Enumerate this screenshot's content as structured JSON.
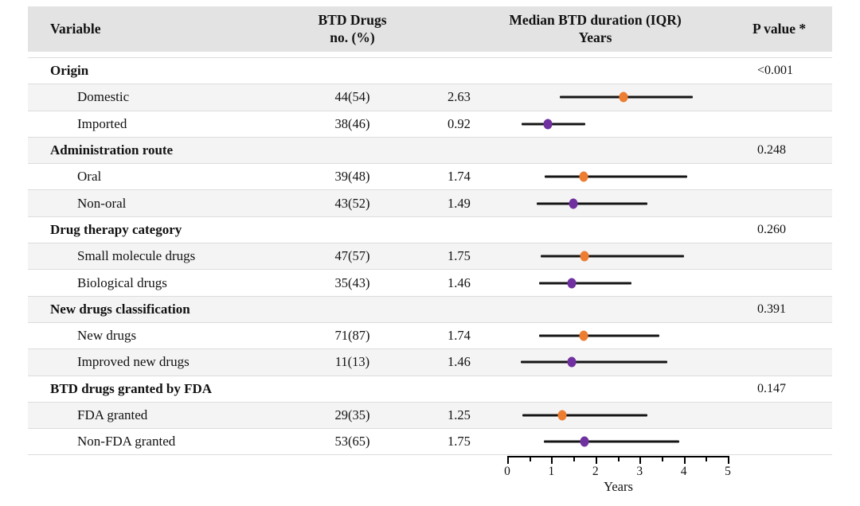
{
  "header": {
    "variable": "Variable",
    "btd_drugs_line1": "BTD Drugs",
    "btd_drugs_line2": "no. (%)",
    "median_line1": "Median BTD duration (IQR)",
    "median_line2": "Years",
    "p_value": "P value *"
  },
  "axis": {
    "min": 0,
    "max": 5,
    "major_ticks": [
      0,
      1,
      2,
      3,
      4,
      5
    ],
    "minor_step": 0.5,
    "title": "Years"
  },
  "colors": {
    "orange_marker": "#ED7D31",
    "purple_marker": "#7030A0",
    "header_bg": "#e3e3e3",
    "stripe_bg": "#f4f4f4",
    "ci_line": "#151515"
  },
  "chart_data": {
    "type": "scatter",
    "subtype": "forest_plot_table",
    "title": "",
    "xlabel": "Years",
    "xlim": [
      0,
      5
    ],
    "x_major_ticks": [
      0,
      1,
      2,
      3,
      4,
      5
    ],
    "x_minor_tick_step": 0.5,
    "legend": "none",
    "groups": [
      {
        "category": "Origin",
        "p_value": "<0.001",
        "items": [
          {
            "label": "Domestic",
            "n_pct": "44(54)",
            "median": 2.63,
            "iqr": [
              1.2,
              4.2
            ],
            "marker_color": "#ED7D31"
          },
          {
            "label": "Imported",
            "n_pct": "38(46)",
            "median": 0.92,
            "iqr": [
              0.33,
              1.77
            ],
            "marker_color": "#7030A0"
          }
        ]
      },
      {
        "category": "Administration route",
        "p_value": "0.248",
        "items": [
          {
            "label": "Oral",
            "n_pct": "39(48)",
            "median": 1.74,
            "iqr": [
              0.85,
              4.08
            ],
            "marker_color": "#ED7D31"
          },
          {
            "label": "Non-oral",
            "n_pct": "43(52)",
            "median": 1.49,
            "iqr": [
              0.67,
              3.18
            ],
            "marker_color": "#7030A0"
          }
        ]
      },
      {
        "category": "Drug therapy category",
        "p_value": "0.260",
        "items": [
          {
            "label": "Small molecule drugs",
            "n_pct": "47(57)",
            "median": 1.75,
            "iqr": [
              0.75,
              4.0
            ],
            "marker_color": "#ED7D31"
          },
          {
            "label": "Biological drugs",
            "n_pct": "35(43)",
            "median": 1.46,
            "iqr": [
              0.72,
              2.82
            ],
            "marker_color": "#7030A0"
          }
        ]
      },
      {
        "category": "New drugs classification",
        "p_value": "0.391",
        "items": [
          {
            "label": "New drugs",
            "n_pct": "71(87)",
            "median": 1.74,
            "iqr": [
              0.72,
              3.45
            ],
            "marker_color": "#ED7D31"
          },
          {
            "label": "Improved new drugs",
            "n_pct": "11(13)",
            "median": 1.46,
            "iqr": [
              0.3,
              3.63
            ],
            "marker_color": "#7030A0"
          }
        ]
      },
      {
        "category": "BTD drugs granted by FDA",
        "p_value": "0.147",
        "items": [
          {
            "label": "FDA granted",
            "n_pct": "29(35)",
            "median": 1.25,
            "iqr": [
              0.35,
              3.18
            ],
            "marker_color": "#ED7D31"
          },
          {
            "label": "Non-FDA granted",
            "n_pct": "53(65)",
            "median": 1.75,
            "iqr": [
              0.83,
              3.9
            ],
            "marker_color": "#7030A0"
          }
        ]
      }
    ]
  }
}
